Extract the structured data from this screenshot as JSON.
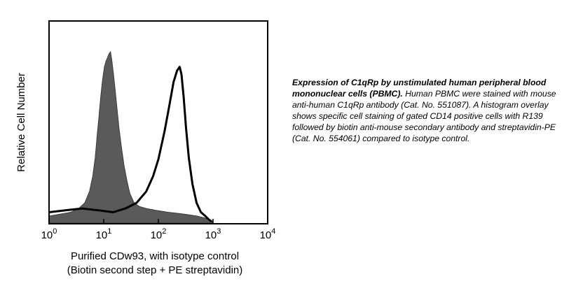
{
  "chart_data": {
    "type": "area",
    "ylabel": "Relative Cell Number",
    "xlabel_line1": "Purified CDw93, with isotype control",
    "xlabel_line2": "(Biotin second step + PE streptavidin)",
    "x_scale": "log",
    "xlim": [
      1,
      10000
    ],
    "ylim": [
      0,
      1
    ],
    "x_ticks": [
      {
        "value": 1,
        "base": "10",
        "exp": "0"
      },
      {
        "value": 10,
        "base": "10",
        "exp": "1"
      },
      {
        "value": 100,
        "base": "10",
        "exp": "2"
      },
      {
        "value": 1000,
        "base": "10",
        "exp": "3"
      },
      {
        "value": 10000,
        "base": "10",
        "exp": "4"
      }
    ],
    "grid": false,
    "legend": "none",
    "series": [
      {
        "role": "isotype control (filled)",
        "color": "#5a5a5a",
        "x": [
          1,
          1.6,
          2.5,
          3.5,
          4.5,
          5.5,
          6.3,
          7,
          7.6,
          8.2,
          8.8,
          9.5,
          10.3,
          11,
          11.8,
          12.5,
          13.3,
          14,
          15,
          16.2,
          17.5,
          19,
          21,
          23.5,
          26.5,
          30,
          36,
          45,
          60,
          90,
          150,
          300,
          500,
          700,
          1000
        ],
        "y": [
          0.03,
          0.04,
          0.05,
          0.07,
          0.1,
          0.16,
          0.24,
          0.34,
          0.46,
          0.56,
          0.66,
          0.75,
          0.82,
          0.85,
          0.87,
          0.89,
          0.9,
          0.86,
          0.79,
          0.7,
          0.6,
          0.5,
          0.4,
          0.3,
          0.22,
          0.15,
          0.1,
          0.08,
          0.07,
          0.06,
          0.05,
          0.04,
          0.03,
          0.02,
          0.0
        ]
      },
      {
        "role": "C1qRp staining (open)",
        "color": "#000000",
        "x": [
          1,
          2,
          4,
          8,
          15,
          25,
          40,
          60,
          80,
          100,
          130,
          160,
          190,
          220,
          245,
          265,
          290,
          320,
          360,
          420,
          500,
          600,
          720,
          850,
          950
        ],
        "y": [
          0.05,
          0.06,
          0.07,
          0.06,
          0.05,
          0.07,
          0.1,
          0.16,
          0.24,
          0.33,
          0.48,
          0.62,
          0.74,
          0.8,
          0.82,
          0.78,
          0.66,
          0.5,
          0.34,
          0.2,
          0.1,
          0.05,
          0.03,
          0.01,
          0.0
        ]
      }
    ]
  },
  "caption": {
    "lead": "Expression of C1qRp by unstimulated human peripheral blood mononuclear cells (PBMC).",
    "body": "Human PBMC were stained with mouse anti-human C1qRp antibody (Cat. No. 551087). A histogram overlay shows specific cell staining of gated CD14 positive cells with R139 followed by biotin anti-mouse secondary antibody and streptavidin-PE (Cat. No. 554061) compared to isotype control."
  }
}
